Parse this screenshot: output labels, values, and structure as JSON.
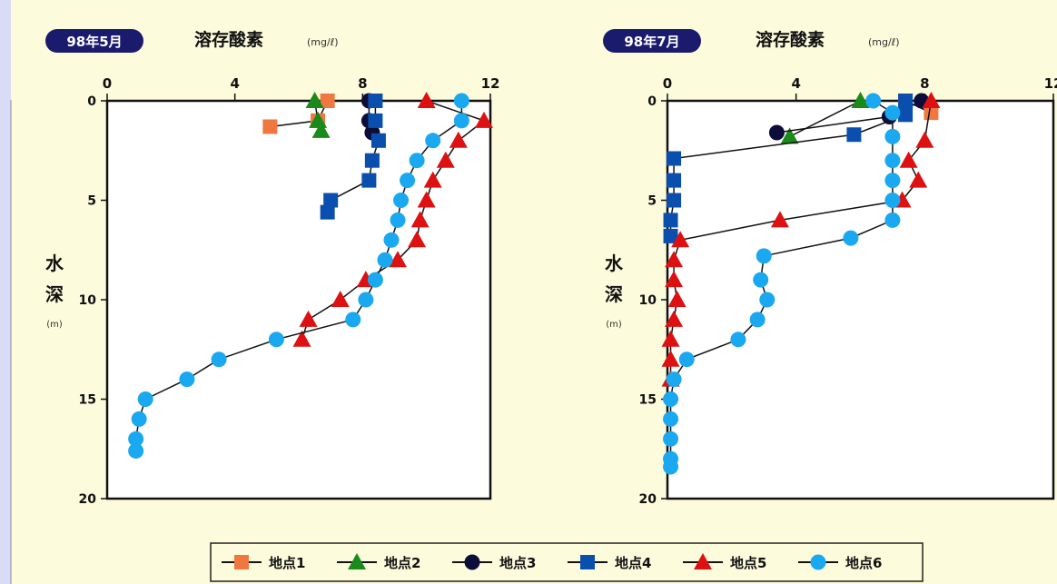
{
  "colors": {
    "page_bg": "#d9dcf7",
    "panel_bg": "#fcfbdc",
    "badge_bg": "#1b1b6e",
    "site1": "#f07840",
    "site2": "#1a8a1a",
    "site3": "#0d0d3a",
    "site4": "#0b4fae",
    "site5": "#dd1111",
    "site6": "#1aa8f0"
  },
  "legend": {
    "items": [
      {
        "label": "地点1",
        "marker": "square",
        "color": "#f07840"
      },
      {
        "label": "地点2",
        "marker": "triangle",
        "color": "#1a8a1a"
      },
      {
        "label": "地点3",
        "marker": "circle",
        "color": "#0d0d3a"
      },
      {
        "label": "地点4",
        "marker": "square",
        "color": "#0b4fae"
      },
      {
        "label": "地点5",
        "marker": "triangle",
        "color": "#dd1111"
      },
      {
        "label": "地点6",
        "marker": "circle",
        "color": "#1aa8f0"
      }
    ]
  },
  "chart_data": [
    {
      "type": "line",
      "badge": "98年5月",
      "title": "溶存酸素",
      "unit": "(mg/ℓ)",
      "ylabel_chars": [
        "水",
        "深"
      ],
      "ylabel_unit": "(m)",
      "xticks": [
        "0",
        "4",
        "8",
        "12"
      ],
      "yticks": [
        "0",
        "5",
        "10",
        "15",
        "20"
      ],
      "xlim": [
        0,
        12
      ],
      "ylim": [
        0,
        20
      ],
      "y_inverted": true,
      "series": [
        {
          "name": "地点1",
          "x": [
            6.9,
            6.6,
            5.1
          ],
          "y": [
            0,
            1,
            1.3
          ]
        },
        {
          "name": "地点2",
          "x": [
            6.5,
            6.6,
            6.7
          ],
          "y": [
            0,
            1,
            1.5
          ]
        },
        {
          "name": "地点3",
          "x": [
            8.2,
            8.2,
            8.3
          ],
          "y": [
            0,
            1,
            1.6
          ]
        },
        {
          "name": "地点4",
          "x": [
            8.4,
            8.4,
            8.5,
            8.3,
            8.2,
            7.0,
            6.9
          ],
          "y": [
            0,
            1,
            2,
            3,
            4,
            5,
            5.6
          ]
        },
        {
          "name": "地点5",
          "x": [
            10.0,
            11.8,
            11.0,
            10.6,
            10.2,
            10.0,
            9.8,
            9.7,
            9.1,
            8.1,
            7.3,
            6.3,
            6.1
          ],
          "y": [
            0,
            1,
            2,
            3,
            4,
            5,
            6,
            7,
            8,
            9,
            10,
            11,
            12
          ]
        },
        {
          "name": "地点6",
          "x": [
            11.1,
            11.1,
            10.2,
            9.7,
            9.4,
            9.2,
            9.1,
            8.9,
            8.7,
            8.4,
            8.1,
            7.7,
            5.3,
            3.5,
            2.5,
            1.2,
            1.0,
            0.9,
            0.9
          ],
          "y": [
            0,
            1,
            2,
            3,
            4,
            5,
            6,
            7,
            8,
            9,
            10,
            11,
            12,
            13,
            14,
            15,
            16,
            17,
            17.6
          ]
        }
      ]
    },
    {
      "type": "line",
      "badge": "98年7月",
      "title": "溶存酸素",
      "unit": "(mg/ℓ)",
      "ylabel_chars": [
        "水",
        "深"
      ],
      "ylabel_unit": "(m)",
      "xticks": [
        "0",
        "4",
        "8",
        "12"
      ],
      "yticks": [
        "0",
        "5",
        "10",
        "15",
        "20"
      ],
      "xlim": [
        0,
        12
      ],
      "ylim": [
        0,
        20
      ],
      "y_inverted": true,
      "series": [
        {
          "name": "地点1",
          "x": [
            7.4,
            8.2
          ],
          "y": [
            0,
            0.6
          ]
        },
        {
          "name": "地点2",
          "x": [
            6.0,
            3.8
          ],
          "y": [
            0,
            1.8
          ]
        },
        {
          "name": "地点3",
          "x": [
            7.9,
            6.9,
            3.4
          ],
          "y": [
            0,
            0.8,
            1.6
          ]
        },
        {
          "name": "地点4",
          "x": [
            7.4,
            7.4,
            5.8,
            0.2,
            0.2,
            0.2,
            0.1,
            0.1
          ],
          "y": [
            0,
            0.7,
            1.7,
            2.9,
            4,
            5,
            6,
            6.8
          ]
        },
        {
          "name": "地点5",
          "x": [
            8.2,
            8.0,
            7.5,
            7.8,
            7.3,
            3.5,
            0.4,
            0.2,
            0.2,
            0.3,
            0.2,
            0.1,
            0.1,
            0.1
          ],
          "y": [
            0,
            2,
            3,
            4,
            5,
            6,
            7,
            8,
            9,
            10,
            11,
            12,
            13,
            14
          ]
        },
        {
          "name": "地点6",
          "x": [
            6.4,
            7.0,
            7.0,
            7.0,
            7.0,
            7.0,
            7.0,
            5.7,
            3.0,
            2.9,
            3.1,
            2.8,
            2.2,
            0.6,
            0.2,
            0.1,
            0.1,
            0.1,
            0.1,
            0.1
          ],
          "y": [
            0,
            0.6,
            1.8,
            3,
            4,
            5,
            6,
            6.9,
            7.8,
            9,
            10,
            11,
            12,
            13,
            14,
            15,
            16,
            17,
            18,
            18.4
          ]
        }
      ]
    }
  ]
}
